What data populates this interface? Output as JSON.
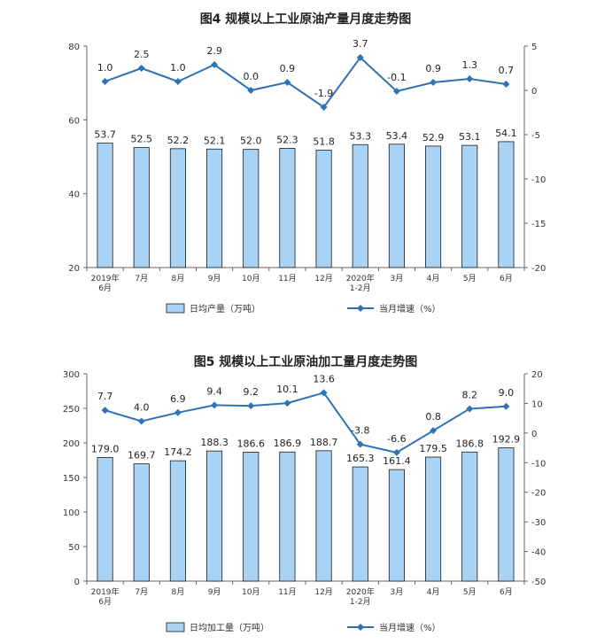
{
  "chart_data": [
    {
      "type": "bar+line",
      "title": "图4  规模以上工业原油产量月度走势图",
      "categories": [
        [
          "2019年",
          "6月"
        ],
        [
          "7月"
        ],
        [
          "8月"
        ],
        [
          "9月"
        ],
        [
          "10月"
        ],
        [
          "11月"
        ],
        [
          "12月"
        ],
        [
          "2020年",
          "1-2月"
        ],
        [
          "3月"
        ],
        [
          "4月"
        ],
        [
          "5月"
        ],
        [
          "6月"
        ]
      ],
      "series": [
        {
          "name": "日均产量（万吨）",
          "type": "bar",
          "axis": "left",
          "values": [
            53.7,
            52.5,
            52.2,
            52.1,
            52.0,
            52.3,
            51.8,
            53.3,
            53.4,
            52.9,
            53.1,
            54.1
          ],
          "labels": [
            "53.7",
            "52.5",
            "52.2",
            "52.1",
            "52.0",
            "52.3",
            "51.8",
            "53.3",
            "53.4",
            "52.9",
            "53.1",
            "54.1"
          ]
        },
        {
          "name": "当月增速（%）",
          "type": "line",
          "axis": "right",
          "values": [
            1.0,
            2.5,
            1.0,
            2.9,
            0.0,
            0.9,
            -1.9,
            3.7,
            -0.1,
            0.9,
            1.3,
            0.7
          ],
          "labels": [
            "1.0",
            "2.5",
            "1.0",
            "2.9",
            "0.0",
            "0.9",
            "-1.9",
            "3.7",
            "-0.1",
            "0.9",
            "1.3",
            "0.7"
          ]
        }
      ],
      "y_left": {
        "min": 20,
        "max": 80,
        "ticks": [
          "20",
          "40",
          "60",
          "80"
        ]
      },
      "y_right": {
        "min": -20,
        "max": 5,
        "ticks": [
          "-20",
          "-15",
          "-10",
          "-5",
          "0",
          "5"
        ]
      },
      "grid": false,
      "legend": "bottom",
      "colors": {
        "bar": "#a9d3f5",
        "bar_stroke": "#1a1a1a",
        "line": "#2f73b5"
      }
    },
    {
      "type": "bar+line",
      "title": "图5  规模以上工业原油加工量月度走势图",
      "categories": [
        [
          "2019年",
          "6月"
        ],
        [
          "7月"
        ],
        [
          "8月"
        ],
        [
          "9月"
        ],
        [
          "10月"
        ],
        [
          "11月"
        ],
        [
          "12月"
        ],
        [
          "2020年",
          "1-2月"
        ],
        [
          "3月"
        ],
        [
          "4月"
        ],
        [
          "5月"
        ],
        [
          "6月"
        ]
      ],
      "series": [
        {
          "name": "日均加工量（万吨）",
          "type": "bar",
          "axis": "left",
          "values": [
            179.0,
            169.7,
            174.2,
            188.3,
            186.6,
            186.9,
            188.7,
            165.3,
            161.4,
            179.5,
            186.8,
            192.9
          ],
          "labels": [
            "179.0",
            "169.7",
            "174.2",
            "188.3",
            "186.6",
            "186.9",
            "188.7",
            "165.3",
            "161.4",
            "179.5",
            "186.8",
            "192.9"
          ]
        },
        {
          "name": "当月增速（%）",
          "type": "line",
          "axis": "right",
          "values": [
            7.7,
            4.0,
            6.9,
            9.4,
            9.2,
            10.1,
            13.6,
            -3.8,
            -6.6,
            0.8,
            8.2,
            9.0
          ],
          "labels": [
            "7.7",
            "4.0",
            "6.9",
            "9.4",
            "9.2",
            "10.1",
            "13.6",
            "-3.8",
            "-6.6",
            "0.8",
            "8.2",
            "9.0"
          ]
        }
      ],
      "y_left": {
        "min": 0,
        "max": 300,
        "ticks": [
          "0",
          "50",
          "100",
          "150",
          "200",
          "250",
          "300"
        ]
      },
      "y_right": {
        "min": -50,
        "max": 20,
        "ticks": [
          "-50",
          "-40",
          "-30",
          "-20",
          "-10",
          "0",
          "10",
          "20"
        ]
      },
      "grid": false,
      "legend": "bottom",
      "colors": {
        "bar": "#a9d3f5",
        "bar_stroke": "#1a1a1a",
        "line": "#2f73b5"
      }
    }
  ]
}
